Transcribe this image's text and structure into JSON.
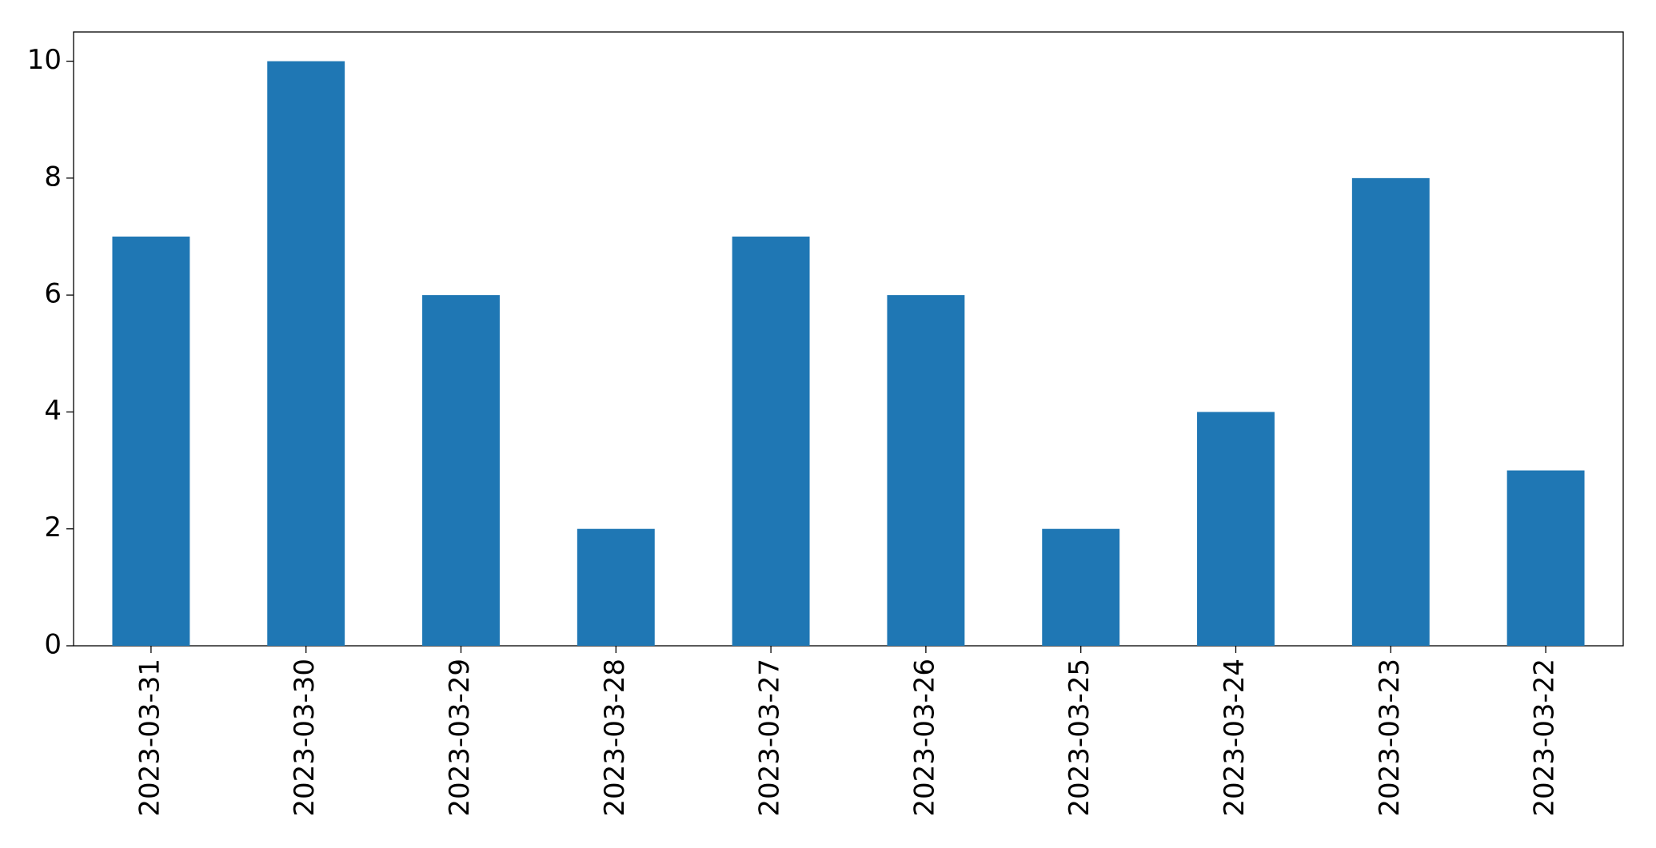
{
  "chart_data": {
    "type": "bar",
    "categories": [
      "2023-03-31",
      "2023-03-30",
      "2023-03-29",
      "2023-03-28",
      "2023-03-27",
      "2023-03-26",
      "2023-03-25",
      "2023-03-24",
      "2023-03-23",
      "2023-03-22"
    ],
    "values": [
      7,
      10,
      6,
      2,
      7,
      6,
      2,
      4,
      8,
      3
    ],
    "color": "#1f77b4",
    "ylim": [
      0,
      10.5
    ],
    "yticks": [
      0,
      2,
      4,
      6,
      8,
      10
    ],
    "grid": false
  }
}
